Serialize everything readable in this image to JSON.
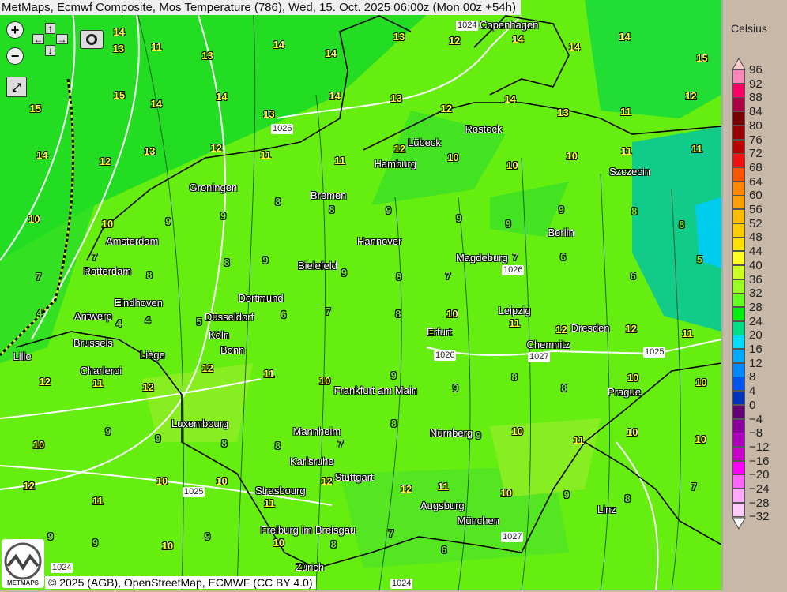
{
  "title": "MetMaps, Ecmwf Composite, Mos Temperature (786), Wed, 15. Oct. 2025 06:00z (Mon 00z +54h)",
  "controls": {
    "zoom_in": "zoom-in-icon",
    "zoom_out": "zoom-out-icon",
    "pan_up": "↑",
    "pan_down": "↓",
    "pan_left": "←",
    "pan_right": "→",
    "camera": "camera-icon",
    "fullscreen": "fullscreen-icon"
  },
  "copyright": "© 2025 (AGB), OpenStreetMap, ECMWF (CC BY 4.0)",
  "logo": "METMAPS",
  "cities": [
    "Copenhagen",
    "Rostock",
    "Lübeck",
    "Hamburg",
    "Szczecin",
    "Groningen",
    "Bremen",
    "Amsterdam",
    "Hannover",
    "Berlin",
    "Magdeburg",
    "Rotterdam",
    "Bielefeld",
    "Eindhoven",
    "Dortmund",
    "Antwerp",
    "Düsseldorf",
    "Leipzig",
    "Dresden",
    "Brussels",
    "Erfurt",
    "Köln",
    "Bonn",
    "Liège",
    "Chemnitz",
    "Lille",
    "Charleroi",
    "Prague",
    "Frankfurt am Main",
    "Luxembourg",
    "Mannheim",
    "Nürnberg",
    "Karlsruhe",
    "Stuttgart",
    "Strasbourg",
    "Augsburg",
    "Linz",
    "München",
    "Freiburg im Breisgau",
    "Zürich"
  ],
  "isobars": [
    "1024",
    "1026",
    "1026",
    "1026",
    "1027",
    "1025",
    "1025",
    "1027",
    "1024",
    "1024"
  ],
  "temperatures": [
    13,
    14,
    11,
    13,
    14,
    14,
    13,
    12,
    14,
    14,
    14,
    15,
    15,
    15,
    14,
    14,
    13,
    14,
    13,
    12,
    14,
    13,
    11,
    12,
    14,
    12,
    13,
    12,
    11,
    11,
    12,
    10,
    10,
    10,
    11,
    11,
    10,
    10,
    9,
    9,
    8,
    8,
    9,
    9,
    9,
    9,
    8,
    8,
    7,
    7,
    8,
    8,
    9,
    9,
    8,
    7,
    7,
    6,
    6,
    5,
    4,
    4,
    4,
    5,
    6,
    7,
    8,
    10,
    11,
    12,
    12,
    11,
    12,
    11,
    12,
    12,
    11,
    10,
    9,
    9,
    8,
    8,
    10,
    10,
    10,
    9,
    9,
    8,
    8,
    7,
    8,
    9,
    10,
    11,
    10,
    10,
    12,
    11,
    10,
    10,
    11,
    12,
    12,
    11,
    10,
    9,
    8,
    7,
    9,
    9,
    10,
    9,
    10,
    8,
    7,
    6
  ],
  "legend": {
    "unit": "Celsius",
    "labels": [
      "96",
      "92",
      "88",
      "84",
      "80",
      "76",
      "72",
      "68",
      "64",
      "60",
      "56",
      "52",
      "48",
      "44",
      "40",
      "36",
      "32",
      "28",
      "24",
      "20",
      "16",
      "12",
      "8",
      "4",
      "0",
      "−4",
      "−8",
      "−12",
      "−16",
      "−20",
      "−24",
      "−28",
      "−32"
    ],
    "colors": [
      "#ff88bb",
      "#ff0066",
      "#aa0044",
      "#770000",
      "#990000",
      "#bb0000",
      "#ee1111",
      "#ff5500",
      "#ff8800",
      "#ffa000",
      "#ffbb00",
      "#ffcc00",
      "#ffe000",
      "#ffff22",
      "#ccff22",
      "#99ff22",
      "#66ff22",
      "#00ee11",
      "#00dd88",
      "#00ddff",
      "#00aaff",
      "#0088ff",
      "#0055ee",
      "#0033bb",
      "#660077",
      "#880099",
      "#aa00bb",
      "#cc00cc",
      "#ff00ff",
      "#ff66ff",
      "#ffaaff",
      "#ffccff"
    ],
    "top_arrow": "#ffcccc",
    "bottom_arrow": "#ffffff"
  }
}
